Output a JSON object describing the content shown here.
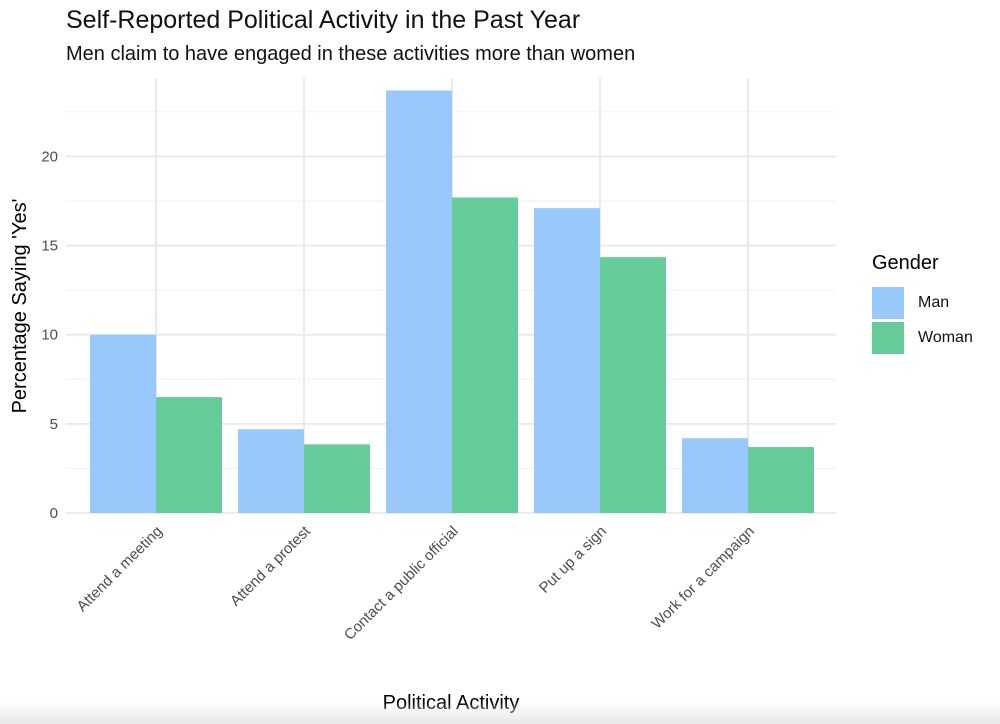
{
  "title": "Self-Reported Political Activity in the Past Year",
  "subtitle": "Men claim to have engaged in these activities more than women",
  "legend": {
    "title": "Gender",
    "items": [
      {
        "label": "Man",
        "color": "#99C9FA"
      },
      {
        "label": "Woman",
        "color": "#66CC99"
      }
    ]
  },
  "chart_data": {
    "type": "bar",
    "title": "Self-Reported Political Activity in the Past Year",
    "subtitle": "Men claim to have engaged in these activities more than women",
    "xlabel": "Political Activity",
    "ylabel": "Percentage Saying 'Yes'",
    "categories": [
      "Attend a meeting",
      "Attend a protest",
      "Contact a public official",
      "Put up a sign",
      "Work for a campaign"
    ],
    "series": [
      {
        "name": "Man",
        "color": "#99C9FA",
        "values": [
          10.0,
          4.7,
          23.7,
          17.1,
          4.2
        ]
      },
      {
        "name": "Woman",
        "color": "#66CC99",
        "values": [
          6.5,
          3.85,
          17.7,
          14.35,
          3.7
        ]
      }
    ],
    "yticks": [
      0,
      5,
      10,
      15,
      20
    ],
    "ylim": [
      0,
      24.4
    ],
    "grid": true,
    "legend_position": "right"
  }
}
